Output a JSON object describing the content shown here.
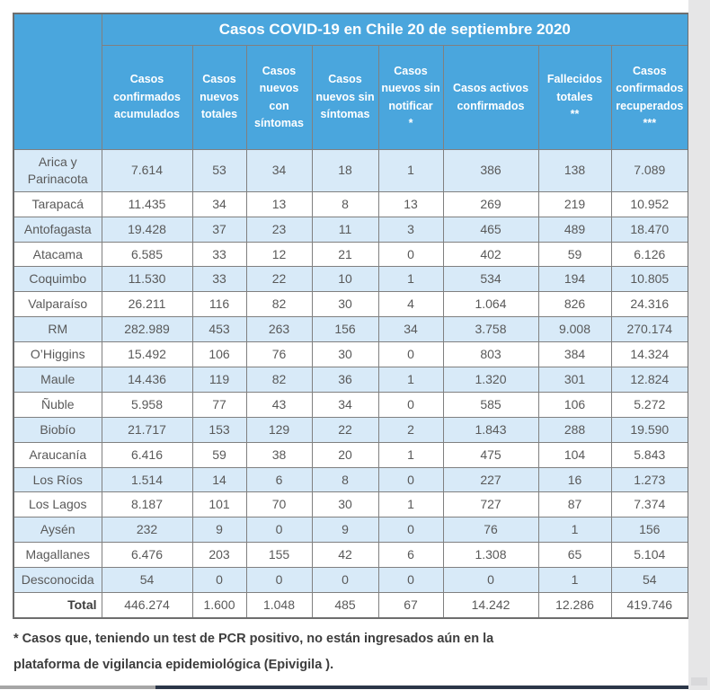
{
  "title": "Casos COVID-19 en Chile 20 de septiembre 2020",
  "colors": {
    "header_blue": "#4aa6dd",
    "row_alt_blue": "#d8eaf8",
    "row_white": "#ffffff",
    "border_gray": "#808080",
    "cell_text_gray": "#595959",
    "footnote_text": "#3d3d3d",
    "bottom_bar_navy": "#2b3648",
    "bottom_bar_gray": "#a6a6a6",
    "side_strip_gray": "#e6e6e7"
  },
  "table": {
    "columns": [
      "Casos confirmados acumulados",
      "Casos nuevos totales",
      "Casos nuevos con síntomas",
      "Casos nuevos sin síntomas",
      "Casos nuevos sin notificar\n*",
      "Casos activos confirmados",
      "Fallecidos totales\n**",
      "Casos confirmados recuperados\n***"
    ],
    "rows": [
      {
        "region": "Arica y Parinacota",
        "values": [
          "7.614",
          "53",
          "34",
          "18",
          "1",
          "386",
          "138",
          "7.089"
        ]
      },
      {
        "region": "Tarapacá",
        "values": [
          "11.435",
          "34",
          "13",
          "8",
          "13",
          "269",
          "219",
          "10.952"
        ]
      },
      {
        "region": "Antofagasta",
        "values": [
          "19.428",
          "37",
          "23",
          "11",
          "3",
          "465",
          "489",
          "18.470"
        ]
      },
      {
        "region": "Atacama",
        "values": [
          "6.585",
          "33",
          "12",
          "21",
          "0",
          "402",
          "59",
          "6.126"
        ]
      },
      {
        "region": "Coquimbo",
        "values": [
          "11.530",
          "33",
          "22",
          "10",
          "1",
          "534",
          "194",
          "10.805"
        ]
      },
      {
        "region": "Valparaíso",
        "values": [
          "26.211",
          "116",
          "82",
          "30",
          "4",
          "1.064",
          "826",
          "24.316"
        ]
      },
      {
        "region": "RM",
        "values": [
          "282.989",
          "453",
          "263",
          "156",
          "34",
          "3.758",
          "9.008",
          "270.174"
        ]
      },
      {
        "region": "O’Higgins",
        "values": [
          "15.492",
          "106",
          "76",
          "30",
          "0",
          "803",
          "384",
          "14.324"
        ]
      },
      {
        "region": "Maule",
        "values": [
          "14.436",
          "119",
          "82",
          "36",
          "1",
          "1.320",
          "301",
          "12.824"
        ]
      },
      {
        "region": "Ñuble",
        "values": [
          "5.958",
          "77",
          "43",
          "34",
          "0",
          "585",
          "106",
          "5.272"
        ]
      },
      {
        "region": "Biobío",
        "values": [
          "21.717",
          "153",
          "129",
          "22",
          "2",
          "1.843",
          "288",
          "19.590"
        ]
      },
      {
        "region": "Araucanía",
        "values": [
          "6.416",
          "59",
          "38",
          "20",
          "1",
          "475",
          "104",
          "5.843"
        ]
      },
      {
        "region": "Los Ríos",
        "values": [
          "1.514",
          "14",
          "6",
          "8",
          "0",
          "227",
          "16",
          "1.273"
        ]
      },
      {
        "region": "Los Lagos",
        "values": [
          "8.187",
          "101",
          "70",
          "30",
          "1",
          "727",
          "87",
          "7.374"
        ]
      },
      {
        "region": "Aysén",
        "values": [
          "232",
          "9",
          "0",
          "9",
          "0",
          "76",
          "1",
          "156"
        ]
      },
      {
        "region": "Magallanes",
        "values": [
          "6.476",
          "203",
          "155",
          "42",
          "6",
          "1.308",
          "65",
          "5.104"
        ]
      },
      {
        "region": "Desconocida",
        "values": [
          "54",
          "0",
          "0",
          "0",
          "0",
          "0",
          "1",
          "54"
        ]
      },
      {
        "region": "Total",
        "values": [
          "446.274",
          "1.600",
          "1.048",
          "485",
          "67",
          "14.242",
          "12.286",
          "419.746"
        ]
      }
    ]
  },
  "footnote": {
    "line1": "* Casos que, teniendo un test de PCR positivo, no están ingresados aún en la",
    "line2": "plataforma de vigilancia epidemiológica (Epivigila )."
  }
}
